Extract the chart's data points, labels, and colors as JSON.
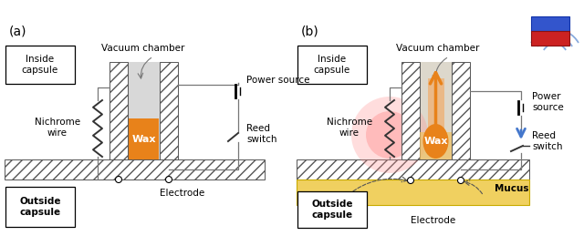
{
  "fig_width": 6.4,
  "fig_height": 2.59,
  "dpi": 100,
  "bg_color": "#ffffff",
  "wax_color": "#e8821a",
  "hatch_color": "#333333",
  "mucus_color": "#f0d060",
  "orange_arrow_color": "#e8821a",
  "blue_rect_color": "#3355cc",
  "red_rect_color": "#cc2222",
  "blue_arrow_color": "#4477cc",
  "panel_a_label": "(a)",
  "panel_b_label": "(b)",
  "inside_capsule": "Inside\ncapsule",
  "outside_capsule": "Outside\ncapsule",
  "vacuum_chamber": "Vacuum chamber",
  "nichrome_wire": "Nichrome\nwire",
  "wax_label": "Wax",
  "power_source_a": "Power source",
  "power_source_b": "Power\nsource",
  "reed_switch": "Reed\nswitch",
  "electrode": "Electrode",
  "mucus_label": "Mucus"
}
